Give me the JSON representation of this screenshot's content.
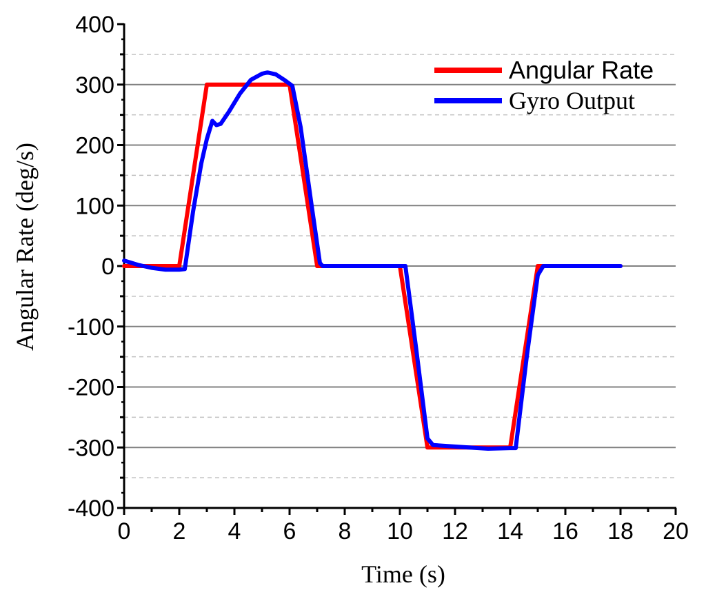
{
  "chart_data": {
    "type": "line",
    "title": "",
    "xlabel": "Time (s)",
    "ylabel": "Angular Rate (deg/s)",
    "xlim": [
      0,
      20
    ],
    "ylim": [
      -400,
      400
    ],
    "x_ticks": [
      0,
      2,
      4,
      6,
      8,
      10,
      12,
      14,
      16,
      18,
      20
    ],
    "y_ticks": [
      -400,
      -300,
      -200,
      -100,
      0,
      100,
      200,
      300,
      400
    ],
    "x_tick_labels": [
      "0",
      "2",
      "4",
      "6",
      "8",
      "10",
      "12",
      "14",
      "16",
      "18",
      "20"
    ],
    "y_tick_labels": [
      "-400",
      "-300",
      "-200",
      "-100",
      "0",
      "100",
      "200",
      "300",
      "400"
    ],
    "grid": {
      "major_y": [
        -300,
        -200,
        -100,
        0,
        100,
        200,
        300
      ],
      "minor_y": [
        -350,
        -250,
        -150,
        -50,
        50,
        150,
        250,
        350
      ],
      "major_color": "#808080",
      "minor_color": "#c0c0c0"
    },
    "legend": {
      "position": "top-right"
    },
    "series": [
      {
        "name": "Angular Rate",
        "color": "#ff0000",
        "points": [
          [
            0,
            0
          ],
          [
            2,
            0
          ],
          [
            3,
            300
          ],
          [
            6,
            300
          ],
          [
            7,
            0
          ],
          [
            10,
            0
          ],
          [
            11,
            -300
          ],
          [
            14,
            -300
          ],
          [
            15,
            0
          ],
          [
            18,
            0
          ]
        ]
      },
      {
        "name": "Gyro Output",
        "color": "#0000ff",
        "points": [
          [
            0,
            9
          ],
          [
            0.5,
            2
          ],
          [
            1,
            -3
          ],
          [
            1.5,
            -6
          ],
          [
            2.0,
            -6
          ],
          [
            2.2,
            -5
          ],
          [
            2.5,
            90
          ],
          [
            2.8,
            170
          ],
          [
            3.0,
            210
          ],
          [
            3.2,
            240
          ],
          [
            3.35,
            233
          ],
          [
            3.5,
            235
          ],
          [
            3.8,
            255
          ],
          [
            4.2,
            285
          ],
          [
            4.6,
            308
          ],
          [
            5.0,
            318
          ],
          [
            5.2,
            320
          ],
          [
            5.5,
            317
          ],
          [
            5.8,
            308
          ],
          [
            6.1,
            298
          ],
          [
            6.4,
            230
          ],
          [
            6.8,
            100
          ],
          [
            7.1,
            5
          ],
          [
            7.2,
            0
          ],
          [
            10.0,
            0
          ],
          [
            10.2,
            0
          ],
          [
            10.6,
            -140
          ],
          [
            11.0,
            -285
          ],
          [
            11.2,
            -296
          ],
          [
            12.5,
            -300
          ],
          [
            13.2,
            -302
          ],
          [
            14.0,
            -301
          ],
          [
            14.2,
            -301
          ],
          [
            14.6,
            -150
          ],
          [
            15.0,
            -15
          ],
          [
            15.2,
            0
          ],
          [
            18.0,
            0
          ]
        ]
      }
    ]
  }
}
